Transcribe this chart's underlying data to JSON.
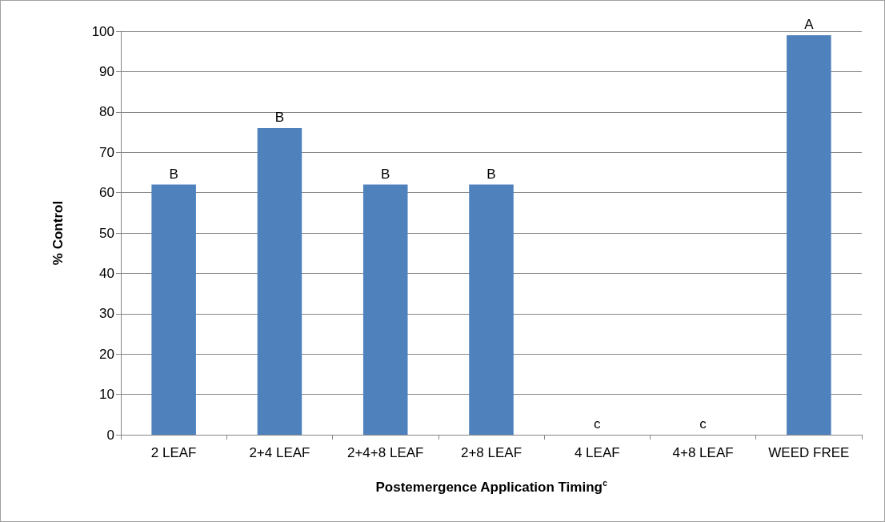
{
  "chart_data": {
    "type": "bar",
    "xlabel": "Postemergence Application Timing$^{c}$",
    "ylabel": "% Control",
    "categories": [
      "2 LEAF",
      "2+4 LEAF",
      "2+4+8 LEAF",
      "2+8 LEAF",
      "4 LEAF",
      "4+8 LEAF",
      "WEED FREE"
    ],
    "values": [
      62,
      76,
      62,
      62,
      0,
      0,
      99
    ],
    "value_labels": [
      "B",
      "B",
      "B",
      "B",
      "c",
      "c",
      "A"
    ],
    "color": "#4f81bd",
    "ylim": [
      0,
      100
    ],
    "yticks": [
      0,
      10,
      20,
      30,
      40,
      50,
      60,
      70,
      80,
      90,
      100
    ],
    "grid": "y"
  }
}
